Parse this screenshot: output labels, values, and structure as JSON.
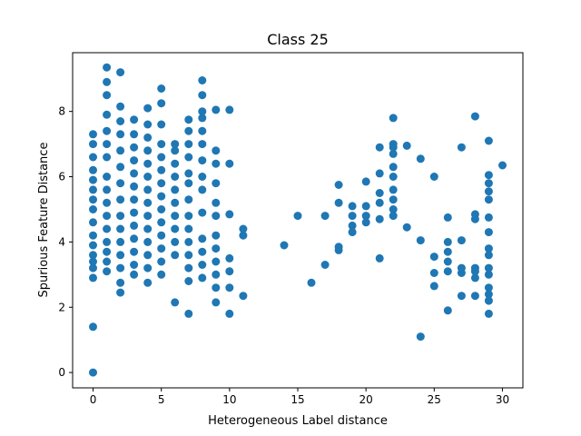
{
  "chart_data": {
    "type": "scatter",
    "title": "Class 25",
    "xlabel": "Heterogeneous Label distance",
    "ylabel": "Spurious Feature Distance",
    "xlim": [
      -1.5,
      31.5
    ],
    "ylim": [
      -0.47,
      9.8
    ],
    "xticks": [
      0,
      5,
      10,
      15,
      20,
      25,
      30
    ],
    "yticks": [
      0,
      2,
      4,
      6,
      8
    ],
    "grid": false,
    "color": "#1f77b4",
    "points": [
      [
        0,
        0
      ],
      [
        0,
        1.4
      ],
      [
        0,
        2.9
      ],
      [
        0,
        3.2
      ],
      [
        0,
        3.4
      ],
      [
        0,
        3.6
      ],
      [
        0,
        3.9
      ],
      [
        0,
        4.2
      ],
      [
        0,
        4.6
      ],
      [
        0,
        5.0
      ],
      [
        0,
        5.3
      ],
      [
        0,
        5.6
      ],
      [
        0,
        5.9
      ],
      [
        0,
        6.2
      ],
      [
        0,
        6.6
      ],
      [
        0,
        7.0
      ],
      [
        0,
        7.3
      ],
      [
        1,
        3.1
      ],
      [
        1,
        3.4
      ],
      [
        1,
        3.7
      ],
      [
        1,
        4.0
      ],
      [
        1,
        4.4
      ],
      [
        1,
        4.8
      ],
      [
        1,
        5.2
      ],
      [
        1,
        5.6
      ],
      [
        1,
        6.0
      ],
      [
        1,
        6.6
      ],
      [
        1,
        7.0
      ],
      [
        1,
        7.4
      ],
      [
        1,
        7.9
      ],
      [
        1,
        8.5
      ],
      [
        1,
        8.9
      ],
      [
        1,
        9.35
      ],
      [
        2,
        2.45
      ],
      [
        2,
        2.75
      ],
      [
        2,
        3.2
      ],
      [
        2,
        3.6
      ],
      [
        2,
        4.0
      ],
      [
        2,
        4.4
      ],
      [
        2,
        4.8
      ],
      [
        2,
        5.3
      ],
      [
        2,
        5.8
      ],
      [
        2,
        6.3
      ],
      [
        2,
        6.8
      ],
      [
        2,
        7.3
      ],
      [
        2,
        7.7
      ],
      [
        2,
        8.15
      ],
      [
        2,
        9.2
      ],
      [
        3,
        3.0
      ],
      [
        3,
        3.3
      ],
      [
        3,
        3.7
      ],
      [
        3,
        4.1
      ],
      [
        3,
        4.5
      ],
      [
        3,
        4.9
      ],
      [
        3,
        5.3
      ],
      [
        3,
        5.7
      ],
      [
        3,
        6.1
      ],
      [
        3,
        6.5
      ],
      [
        3,
        6.9
      ],
      [
        3,
        7.3
      ],
      [
        3,
        7.75
      ],
      [
        4,
        2.75
      ],
      [
        4,
        3.2
      ],
      [
        4,
        3.6
      ],
      [
        4,
        4.0
      ],
      [
        4,
        4.4
      ],
      [
        4,
        4.8
      ],
      [
        4,
        5.2
      ],
      [
        4,
        5.6
      ],
      [
        4,
        6.0
      ],
      [
        4,
        6.4
      ],
      [
        4,
        6.8
      ],
      [
        4,
        7.2
      ],
      [
        4,
        7.6
      ],
      [
        4,
        8.1
      ],
      [
        5,
        3.0
      ],
      [
        5,
        3.4
      ],
      [
        5,
        3.8
      ],
      [
        5,
        4.2
      ],
      [
        5,
        4.6
      ],
      [
        5,
        5.0
      ],
      [
        5,
        5.4
      ],
      [
        5,
        5.8
      ],
      [
        5,
        6.2
      ],
      [
        5,
        6.6
      ],
      [
        5,
        7.0
      ],
      [
        5,
        7.6
      ],
      [
        5,
        8.25
      ],
      [
        5,
        8.7
      ],
      [
        6,
        2.15
      ],
      [
        6,
        3.6
      ],
      [
        6,
        4.0
      ],
      [
        6,
        4.4
      ],
      [
        6,
        4.8
      ],
      [
        6,
        5.2
      ],
      [
        6,
        5.6
      ],
      [
        6,
        6.0
      ],
      [
        6,
        6.4
      ],
      [
        6,
        6.8
      ],
      [
        6,
        7.0
      ],
      [
        7,
        1.8
      ],
      [
        7,
        2.8
      ],
      [
        7,
        3.2
      ],
      [
        7,
        3.6
      ],
      [
        7,
        4.0
      ],
      [
        7,
        4.4
      ],
      [
        7,
        4.8
      ],
      [
        7,
        5.3
      ],
      [
        7,
        5.8
      ],
      [
        7,
        6.1
      ],
      [
        7,
        6.6
      ],
      [
        7,
        7.0
      ],
      [
        7,
        7.4
      ],
      [
        7,
        7.75
      ],
      [
        8,
        2.9
      ],
      [
        8,
        3.3
      ],
      [
        8,
        3.7
      ],
      [
        8,
        4.1
      ],
      [
        8,
        4.9
      ],
      [
        8,
        5.6
      ],
      [
        8,
        6.0
      ],
      [
        8,
        6.5
      ],
      [
        8,
        7.0
      ],
      [
        8,
        7.4
      ],
      [
        8,
        7.8
      ],
      [
        8,
        8.0
      ],
      [
        8,
        8.5
      ],
      [
        8,
        8.95
      ],
      [
        9,
        2.15
      ],
      [
        9,
        2.6
      ],
      [
        9,
        3.0
      ],
      [
        9,
        3.4
      ],
      [
        9,
        3.8
      ],
      [
        9,
        4.2
      ],
      [
        9,
        4.8
      ],
      [
        9,
        5.2
      ],
      [
        9,
        5.8
      ],
      [
        9,
        6.4
      ],
      [
        9,
        6.8
      ],
      [
        9,
        8.05
      ],
      [
        10,
        1.8
      ],
      [
        10,
        2.6
      ],
      [
        10,
        3.1
      ],
      [
        10,
        3.5
      ],
      [
        10,
        4.85
      ],
      [
        10,
        6.4
      ],
      [
        10,
        8.05
      ],
      [
        11,
        2.35
      ],
      [
        11,
        4.2
      ],
      [
        11,
        4.4
      ],
      [
        14,
        3.9
      ],
      [
        15,
        4.8
      ],
      [
        16,
        2.75
      ],
      [
        17,
        3.3
      ],
      [
        17,
        4.8
      ],
      [
        18,
        3.75
      ],
      [
        18,
        3.85
      ],
      [
        18,
        5.2
      ],
      [
        18,
        5.75
      ],
      [
        19,
        4.3
      ],
      [
        19,
        4.5
      ],
      [
        19,
        4.8
      ],
      [
        19,
        5.1
      ],
      [
        20,
        4.6
      ],
      [
        20,
        4.8
      ],
      [
        20,
        5.1
      ],
      [
        20,
        5.85
      ],
      [
        21,
        3.5
      ],
      [
        21,
        4.7
      ],
      [
        21,
        5.2
      ],
      [
        21,
        5.5
      ],
      [
        21,
        6.1
      ],
      [
        21,
        6.9
      ],
      [
        22,
        4.8
      ],
      [
        22,
        5.0
      ],
      [
        22,
        5.3
      ],
      [
        22,
        5.6
      ],
      [
        22,
        6.0
      ],
      [
        22,
        6.3
      ],
      [
        22,
        6.7
      ],
      [
        22,
        6.9
      ],
      [
        22,
        7.0
      ],
      [
        22,
        7.8
      ],
      [
        23,
        4.45
      ],
      [
        23,
        6.95
      ],
      [
        24,
        1.1
      ],
      [
        24,
        4.05
      ],
      [
        24,
        6.55
      ],
      [
        25,
        2.65
      ],
      [
        25,
        3.05
      ],
      [
        25,
        3.55
      ],
      [
        25,
        6.0
      ],
      [
        26,
        1.9
      ],
      [
        26,
        3.1
      ],
      [
        26,
        3.4
      ],
      [
        26,
        3.7
      ],
      [
        26,
        4.0
      ],
      [
        26,
        4.75
      ],
      [
        27,
        2.35
      ],
      [
        27,
        3.05
      ],
      [
        27,
        3.2
      ],
      [
        27,
        4.05
      ],
      [
        27,
        6.9
      ],
      [
        28,
        2.35
      ],
      [
        28,
        2.9
      ],
      [
        28,
        3.1
      ],
      [
        28,
        3.2
      ],
      [
        28,
        4.7
      ],
      [
        28,
        4.85
      ],
      [
        28,
        7.85
      ],
      [
        29,
        1.8
      ],
      [
        29,
        2.2
      ],
      [
        29,
        2.4
      ],
      [
        29,
        2.6
      ],
      [
        29,
        3.0
      ],
      [
        29,
        3.2
      ],
      [
        29,
        3.6
      ],
      [
        29,
        3.8
      ],
      [
        29,
        4.3
      ],
      [
        29,
        4.75
      ],
      [
        29,
        5.3
      ],
      [
        29,
        5.55
      ],
      [
        29,
        5.8
      ],
      [
        29,
        6.05
      ],
      [
        29,
        7.1
      ],
      [
        30,
        6.35
      ]
    ]
  }
}
